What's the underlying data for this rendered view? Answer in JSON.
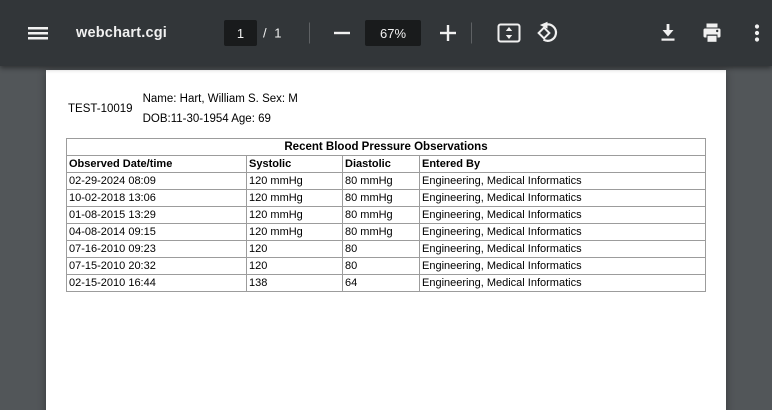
{
  "toolbar": {
    "title": "webchart.cgi",
    "page_input_value": "1",
    "page_count_label": "/ 1",
    "zoom_value": "67%",
    "icons": {
      "menu": "hamburger-menu-icon",
      "zoom_out": "minus-icon",
      "zoom_in": "plus-icon",
      "fit": "fit-to-page-icon",
      "rotate": "rotate-counterclockwise-icon",
      "download": "download-icon",
      "print": "print-icon",
      "more": "three-dot-menu-icon"
    }
  },
  "document": {
    "patient_id": "TEST-10019",
    "name_line": "Name: Hart, William S. Sex: M",
    "dob_line": "DOB:11-30-1954 Age: 69",
    "table": {
      "title": "Recent Blood Pressure Observations",
      "columns": [
        "Observed Date/time",
        "Systolic",
        "Diastolic",
        "Entered By"
      ],
      "rows": [
        [
          "02-29-2024 08:09",
          "120 mmHg",
          "80 mmHg",
          "Engineering, Medical Informatics"
        ],
        [
          "10-02-2018 13:06",
          "120 mmHg",
          "80 mmHg",
          "Engineering, Medical Informatics"
        ],
        [
          "01-08-2015 13:29",
          "120 mmHg",
          "80 mmHg",
          "Engineering, Medical Informatics"
        ],
        [
          "04-08-2014 09:15",
          "120 mmHg",
          "80 mmHg",
          "Engineering, Medical Informatics"
        ],
        [
          "07-16-2010 09:23",
          "120",
          "80",
          "Engineering, Medical Informatics"
        ],
        [
          "07-15-2010 20:32",
          "120",
          "80",
          "Engineering, Medical Informatics"
        ],
        [
          "02-15-2010 16:44",
          "138",
          "64",
          "Engineering, Medical Informatics"
        ]
      ]
    }
  },
  "colors": {
    "toolbar_bg": "#323639",
    "viewer_bg": "#525659",
    "chip_bg": "#191b1c",
    "icon": "#f1f1f1",
    "page_bg": "#ffffff",
    "table_border": "#9c9c9c",
    "doc_text": "#000000"
  }
}
